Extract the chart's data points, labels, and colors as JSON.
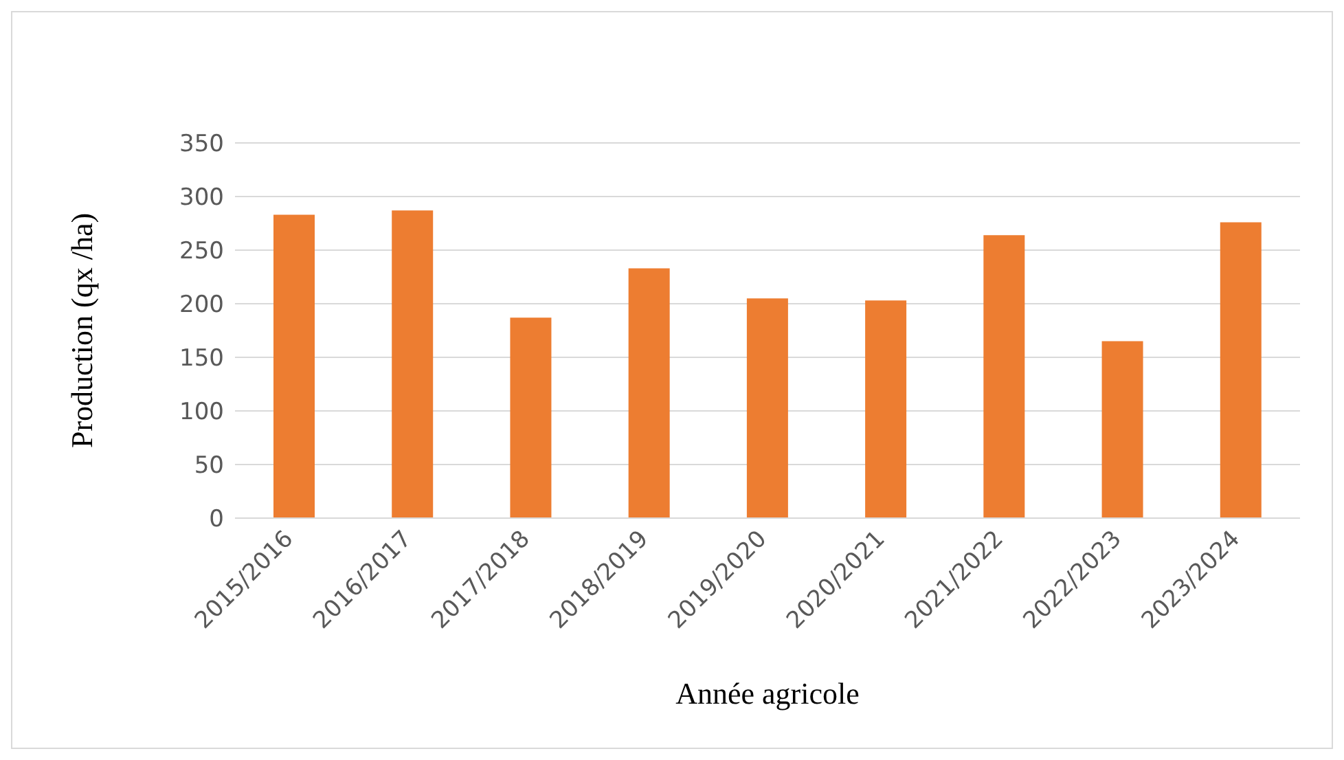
{
  "chart_data": {
    "type": "bar",
    "xlabel": "Année agricole",
    "ylabel": "Production (qx /ha)",
    "categories": [
      "2015/2016",
      "2016/2017",
      "2017/2018",
      "2018/2019",
      "2019/2020",
      "2020/2021",
      "2021/2022",
      "2022/2023",
      "2023/2024"
    ],
    "values": [
      283,
      287,
      187,
      233,
      205,
      203,
      264,
      165,
      276
    ],
    "color": "#ed7d31",
    "ylim": [
      0,
      350
    ],
    "yticks": [
      0,
      50,
      100,
      150,
      200,
      250,
      300,
      350
    ],
    "grid": "y"
  }
}
